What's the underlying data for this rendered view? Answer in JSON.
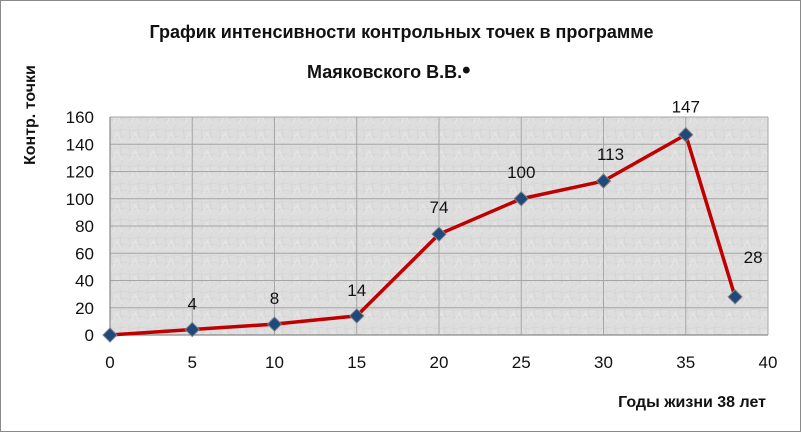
{
  "chart_data": {
    "type": "line",
    "title_line_1": "График интенсивности контрольных точек в программе",
    "title_line_2": "Маяковского  В.В.",
    "title_dot": "•",
    "xlabel": "Годы жизни 38 лет",
    "ylabel": "Контр. точки",
    "xlim": [
      0,
      40
    ],
    "ylim": [
      0,
      160
    ],
    "x_ticks": [
      0,
      5,
      10,
      15,
      20,
      25,
      30,
      35,
      40
    ],
    "y_ticks": [
      0,
      20,
      40,
      60,
      80,
      100,
      120,
      140,
      160
    ],
    "grid": true,
    "legend": "none",
    "series": [
      {
        "x": [
          0,
          5,
          10,
          15,
          20,
          25,
          30,
          35,
          38
        ],
        "y": [
          0,
          4,
          8,
          14,
          74,
          100,
          113,
          147,
          28
        ],
        "labels": [
          "",
          "4",
          "8",
          "14",
          "74",
          "100",
          "113",
          "147",
          "28"
        ],
        "line_color": "#c00000",
        "marker_color": "#1f497d",
        "marker": "diamond"
      }
    ],
    "plot_background": "#dcdcdc",
    "grid_color": "#a6a6a6",
    "axis_color": "#8a8a8a"
  }
}
